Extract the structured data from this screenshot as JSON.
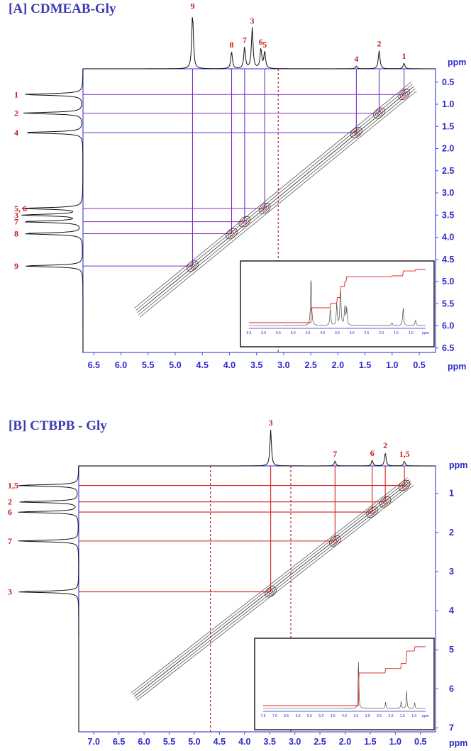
{
  "chart_data": [
    {
      "type": "2d-nmr-correlation",
      "title": "[A] CDMEAB-Gly",
      "x_unit": "ppm",
      "y_unit": "ppm",
      "xlim": [
        6.7,
        0.2
      ],
      "ylim": [
        0.2,
        6.6
      ],
      "x_ticks": [
        "6.5",
        "6.0",
        "5.5",
        "5.0",
        "4.5",
        "4.0",
        "3.5",
        "3.0",
        "2.5",
        "2.0",
        "1.5",
        "1.0",
        "0.5"
      ],
      "y_ticks": [
        "0.5",
        "1.0",
        "1.5",
        "2.0",
        "2.5",
        "3.0",
        "3.5",
        "4.0",
        "4.5",
        "5.0",
        "5.5",
        "6.0",
        "6.5"
      ],
      "top_peaks": [
        {
          "label": "1",
          "ppm": 0.78,
          "height": 0.1
        },
        {
          "label": "2",
          "ppm": 1.24,
          "height": 0.32
        },
        {
          "label": "4",
          "ppm": 1.66,
          "height": 0.05
        },
        {
          "label": "5",
          "ppm": 3.35,
          "height": 0.3
        },
        {
          "label": "6",
          "ppm": 3.42,
          "height": 0.35
        },
        {
          "label": "3",
          "ppm": 3.58,
          "height": 0.72
        },
        {
          "label": "7",
          "ppm": 3.72,
          "height": 0.38
        },
        {
          "label": "8",
          "ppm": 3.96,
          "height": 0.3
        },
        {
          "label": "9",
          "ppm": 4.68,
          "height": 0.98
        }
      ],
      "side_peaks": [
        {
          "label": "1",
          "ppm": 0.78
        },
        {
          "label": "2",
          "ppm": 1.2
        },
        {
          "label": "4",
          "ppm": 1.64
        },
        {
          "label": "5, 6",
          "ppm": 3.35
        },
        {
          "label": "3",
          "ppm": 3.5
        },
        {
          "label": "7",
          "ppm": 3.65
        },
        {
          "label": "8",
          "ppm": 3.92
        },
        {
          "label": "9",
          "ppm": 4.65
        }
      ],
      "cross_peaks": [
        {
          "label": "1",
          "x": 0.78,
          "y": 0.78
        },
        {
          "label": "2",
          "x": 1.24,
          "y": 1.2
        },
        {
          "label": "4",
          "x": 1.66,
          "y": 1.64
        },
        {
          "label": "5, 6",
          "x": 3.35,
          "y": 3.35
        },
        {
          "label": "7",
          "x": 3.72,
          "y": 3.65
        },
        {
          "label": "8",
          "x": 3.96,
          "y": 3.92
        },
        {
          "label": "9",
          "x": 4.68,
          "y": 4.65
        }
      ],
      "inset": {
        "xlim": [
          7.0,
          0.4
        ],
        "ticks": [
          "6.5",
          "6.0",
          "5.5",
          "5.0",
          "4.5",
          "4.0",
          "3.5",
          "3.0",
          "2.5",
          "2.0",
          "1.5",
          "1.0",
          "ppm"
        ]
      }
    },
    {
      "type": "2d-nmr-correlation",
      "title": "[B] CTBPB - Gly",
      "x_unit": "ppm",
      "y_unit": "ppm",
      "xlim": [
        7.3,
        0.2
      ],
      "ylim": [
        0.3,
        7.1
      ],
      "x_ticks": [
        "7.0",
        "6.5",
        "6.0",
        "5.5",
        "5.0",
        "4.5",
        "4.0",
        "3.5",
        "3.0",
        "2.5",
        "2.0",
        "1.5",
        "1.0",
        "0.5"
      ],
      "y_ticks": [
        "1",
        "2",
        "3",
        "4",
        "5",
        "6",
        "7"
      ],
      "top_peaks": [
        {
          "label": "1,5",
          "ppm": 0.82,
          "height": 0.1
        },
        {
          "label": "2",
          "ppm": 1.2,
          "height": 0.28
        },
        {
          "label": "6",
          "ppm": 1.46,
          "height": 0.12
        },
        {
          "label": "7",
          "ppm": 2.2,
          "height": 0.1
        },
        {
          "label": "3",
          "ppm": 3.48,
          "height": 0.75
        }
      ],
      "side_peaks": [
        {
          "label": "1,5",
          "ppm": 0.8
        },
        {
          "label": "2",
          "ppm": 1.22
        },
        {
          "label": "6",
          "ppm": 1.48
        },
        {
          "label": "7",
          "ppm": 2.22
        },
        {
          "label": "3",
          "ppm": 3.52
        }
      ],
      "cross_peaks": [
        {
          "label": "1,5",
          "x": 0.82,
          "y": 0.8
        },
        {
          "label": "2",
          "x": 1.2,
          "y": 1.22
        },
        {
          "label": "6",
          "x": 1.46,
          "y": 1.48
        },
        {
          "label": "7",
          "x": 2.2,
          "y": 2.22
        },
        {
          "label": "3",
          "x": 3.48,
          "y": 3.52
        }
      ],
      "inset": {
        "xlim": [
          8.0,
          0.3
        ],
        "ticks": [
          "7.5",
          "7.0",
          "6.5",
          "6.0",
          "5.5",
          "5.0",
          "4.5",
          "4.0",
          "3.5",
          "3.0",
          "2.5",
          "2.0",
          "1.5",
          "1.0",
          "ppm"
        ]
      }
    }
  ]
}
